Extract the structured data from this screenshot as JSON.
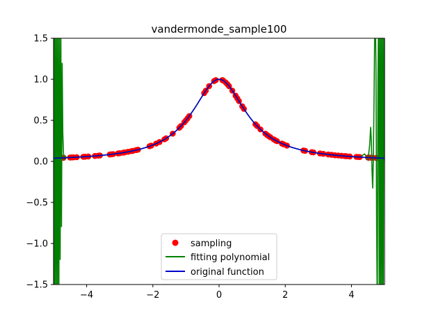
{
  "chart_data": {
    "type": "line",
    "title": "vandermonde_sample100",
    "xlabel": "",
    "ylabel": "",
    "xlim": [
      -5,
      5
    ],
    "ylim": [
      -1.5,
      1.5
    ],
    "grid": false,
    "legend_position": "lower center",
    "x_ticks": [
      -4,
      -2,
      0,
      2,
      4
    ],
    "x_tick_labels": [
      "−4",
      "−2",
      "0",
      "2",
      "4"
    ],
    "y_ticks": [
      -1.5,
      -1.0,
      -0.5,
      0.0,
      0.5,
      1.0,
      1.5
    ],
    "y_tick_labels": [
      "−1.5",
      "−1.0",
      "−0.5",
      "0.0",
      "0.5",
      "1.0",
      "1.5"
    ],
    "function": "1/(1+x^2)",
    "series": [
      {
        "name": "sampling",
        "kind": "scatter",
        "color": "#ff0000",
        "x": [
          -4.9,
          -4.85,
          -4.8,
          -4.75,
          -4.7,
          -4.5,
          -4.45,
          -4.4,
          -4.3,
          -4.1,
          -4.05,
          -3.95,
          -3.75,
          -3.65,
          -3.6,
          -3.3,
          -3.25,
          -3.2,
          -3.05,
          -3.0,
          -2.9,
          -2.85,
          -2.75,
          -2.65,
          -2.6,
          -2.5,
          -2.45,
          -2.1,
          -2.05,
          -1.9,
          -1.8,
          -1.65,
          -1.6,
          -1.4,
          -1.2,
          -1.15,
          -1.05,
          -1.0,
          -0.95,
          -0.9,
          -0.45,
          -0.4,
          -0.3,
          -0.15,
          -0.1,
          0.1,
          0.12,
          0.2,
          0.25,
          0.3,
          0.4,
          0.5,
          0.55,
          0.6,
          0.7,
          0.75,
          1.1,
          1.15,
          1.25,
          1.4,
          1.45,
          1.5,
          1.55,
          1.65,
          1.7,
          1.75,
          1.9,
          1.95,
          2.05,
          2.55,
          2.6,
          2.8,
          2.85,
          3.05,
          3.15,
          3.3,
          3.4,
          3.5,
          3.6,
          3.7,
          3.8,
          3.85,
          3.95,
          4.15,
          4.2,
          4.25,
          4.5,
          4.55,
          4.6,
          4.65,
          4.75,
          4.8,
          4.95
        ],
        "y": [
          0.04,
          0.041,
          0.042,
          0.043,
          0.044,
          0.047,
          0.048,
          0.049,
          0.051,
          0.056,
          0.057,
          0.06,
          0.066,
          0.07,
          0.072,
          0.084,
          0.086,
          0.089,
          0.097,
          0.1,
          0.106,
          0.11,
          0.117,
          0.125,
          0.129,
          0.138,
          0.143,
          0.185,
          0.192,
          0.217,
          0.236,
          0.269,
          0.281,
          0.338,
          0.41,
          0.431,
          0.476,
          0.5,
          0.525,
          0.552,
          0.832,
          0.862,
          0.917,
          0.978,
          0.99,
          0.99,
          0.986,
          0.962,
          0.941,
          0.917,
          0.862,
          0.8,
          0.768,
          0.735,
          0.671,
          0.64,
          0.452,
          0.431,
          0.39,
          0.338,
          0.322,
          0.308,
          0.294,
          0.269,
          0.257,
          0.246,
          0.217,
          0.208,
          0.192,
          0.133,
          0.129,
          0.113,
          0.11,
          0.097,
          0.092,
          0.084,
          0.08,
          0.075,
          0.072,
          0.068,
          0.065,
          0.063,
          0.06,
          0.055,
          0.054,
          0.053,
          0.047,
          0.046,
          0.045,
          0.044,
          0.042,
          0.042,
          0.039
        ]
      },
      {
        "name": "fitting polynomial",
        "kind": "line",
        "color": "#008000",
        "x": [
          -5.0,
          -4.99,
          -4.975,
          -4.96,
          -4.94,
          -4.92,
          -4.9,
          -4.88,
          -4.86,
          -4.84,
          -4.82,
          -4.8,
          -4.78,
          -4.76,
          -4.74,
          -4.72,
          -4.7,
          -4.68,
          -4.66,
          -4.64,
          -4.62,
          -4.6,
          -4.55,
          -4.5,
          -4.4,
          4.3,
          4.35,
          4.4,
          4.45,
          4.5,
          4.55,
          4.58,
          4.6,
          4.62,
          4.64,
          4.66,
          4.68,
          4.7,
          4.72,
          4.74,
          4.76,
          4.78,
          4.8,
          4.82,
          4.84,
          4.86,
          4.88,
          4.9,
          4.92,
          4.94,
          4.96,
          4.98,
          5.0
        ],
        "y": [
          0.04,
          -1.8,
          1.8,
          -1.8,
          1.8,
          -1.8,
          1.8,
          -1.8,
          1.8,
          -1.8,
          1.6,
          -1.2,
          1.6,
          -0.8,
          1.2,
          0.35,
          0.1,
          0.02,
          0.06,
          0.04,
          0.05,
          0.045,
          0.048,
          0.047,
          0.049,
          0.06,
          0.08,
          0.09,
          0.06,
          0.02,
          0.2,
          0.42,
          0.25,
          -0.1,
          -0.33,
          0.0,
          0.7,
          1.5,
          1.8,
          1.2,
          -0.8,
          -1.8,
          1.0,
          1.8,
          -1.8,
          1.8,
          -1.8,
          1.8,
          -1.8,
          1.8,
          -1.8,
          1.8,
          0.038
        ]
      },
      {
        "name": "original function",
        "kind": "line",
        "color": "#0000cc"
      }
    ]
  }
}
